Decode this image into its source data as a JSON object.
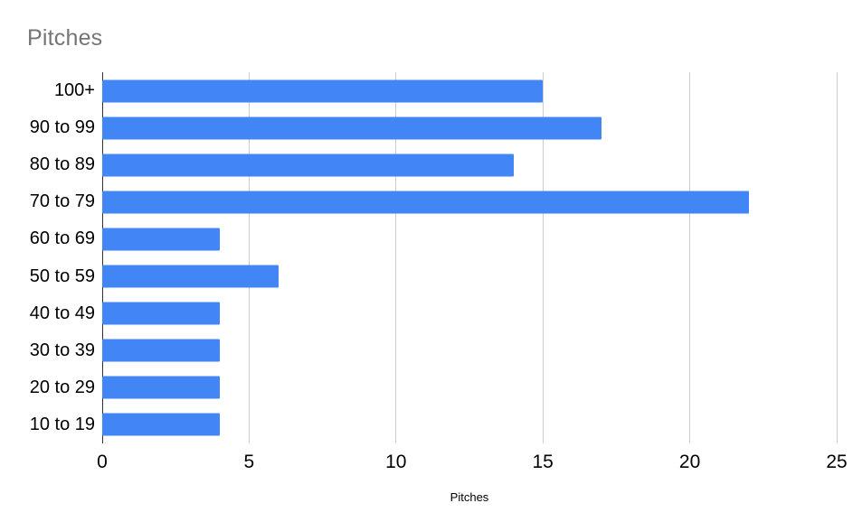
{
  "chart_data": {
    "type": "bar",
    "orientation": "horizontal",
    "title": "Pitches",
    "xlabel": "Pitches",
    "ylabel": "",
    "categories": [
      "100+",
      "90 to 99",
      "80 to 89",
      "70 to 79",
      "60 to 69",
      "50 to 59",
      "40 to 49",
      "30 to 39",
      "20 to 29",
      "10 to 19"
    ],
    "values": [
      15,
      17,
      14,
      22,
      4,
      6,
      4,
      4,
      4,
      4
    ],
    "xlim": [
      0,
      25
    ],
    "xticks": [
      0,
      5,
      10,
      15,
      20,
      25
    ],
    "grid": true,
    "legend": "none",
    "bar_color": "#4285f4"
  },
  "colors": {
    "background": "#ffffff",
    "title_text": "#757575",
    "axis_text": "#000000",
    "gridline": "#cccccc",
    "baseline": "#333333",
    "bar": "#4285f4"
  }
}
